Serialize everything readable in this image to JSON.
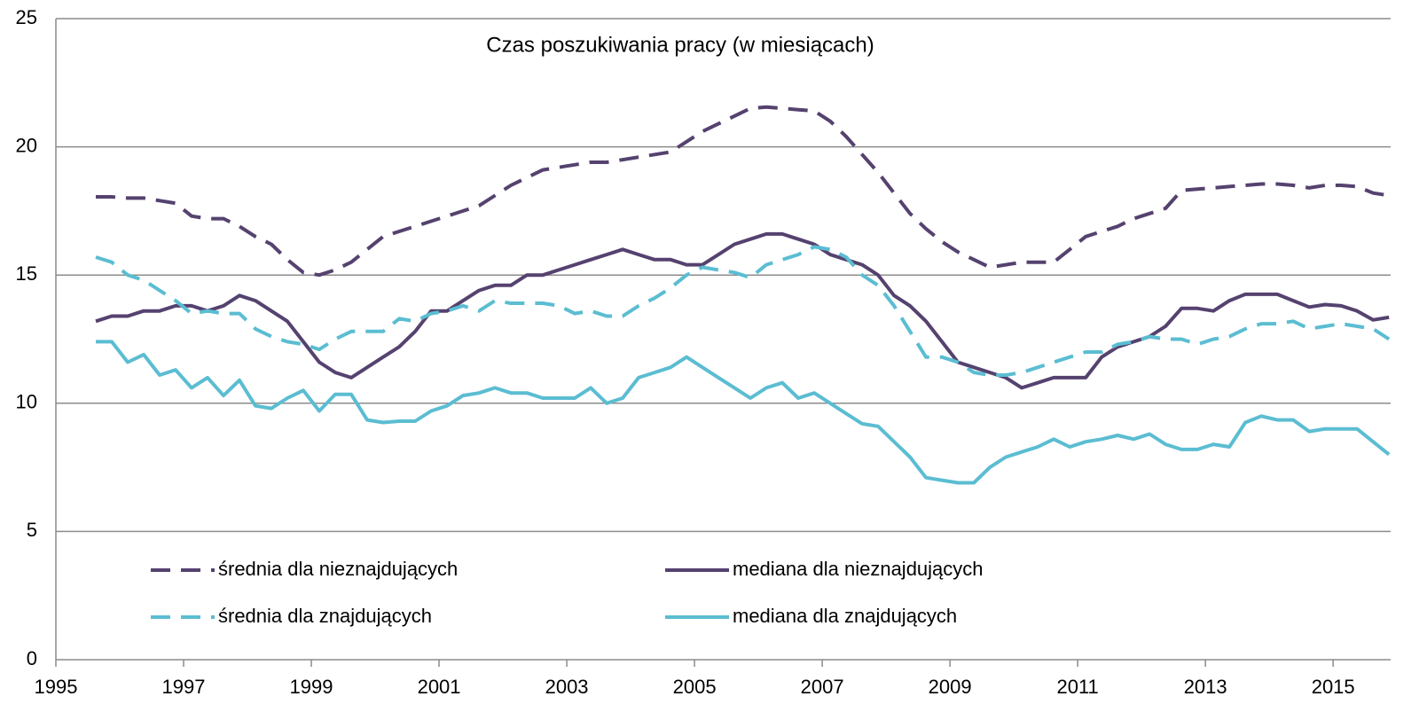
{
  "chart_data": {
    "type": "line",
    "title": "Czas poszukiwania pracy (w miesiącach)",
    "x": [
      1995.625,
      1995.875,
      1996.125,
      1996.375,
      1996.625,
      1996.875,
      1997.125,
      1997.375,
      1997.625,
      1997.875,
      1998.125,
      1998.375,
      1998.625,
      1998.875,
      1999.125,
      1999.375,
      1999.625,
      1999.875,
      2000.125,
      2000.375,
      2000.625,
      2000.875,
      2001.125,
      2001.375,
      2001.625,
      2001.875,
      2002.125,
      2002.375,
      2002.625,
      2002.875,
      2003.125,
      2003.375,
      2003.625,
      2003.875,
      2004.125,
      2004.375,
      2004.625,
      2004.875,
      2005.125,
      2005.375,
      2005.625,
      2005.875,
      2006.125,
      2006.375,
      2006.625,
      2006.875,
      2007.125,
      2007.375,
      2007.625,
      2007.875,
      2008.125,
      2008.375,
      2008.625,
      2008.875,
      2009.125,
      2009.375,
      2009.625,
      2009.875,
      2010.125,
      2010.375,
      2010.625,
      2010.875,
      2011.125,
      2011.375,
      2011.625,
      2011.875,
      2012.125,
      2012.375,
      2012.625,
      2012.875,
      2013.125,
      2013.375,
      2013.625,
      2013.875,
      2014.125,
      2014.375,
      2014.625,
      2014.875,
      2015.125,
      2015.375,
      2015.625,
      2015.875
    ],
    "series": [
      {
        "name": "średnia dla nieznajdujących",
        "color": "#55426f",
        "dashed": true,
        "values": [
          18.05,
          18.05,
          18.0,
          18.0,
          17.9,
          17.8,
          17.3,
          17.2,
          17.2,
          16.9,
          16.5,
          16.2,
          15.6,
          15.1,
          15.0,
          15.2,
          15.5,
          16.0,
          16.5,
          16.7,
          16.9,
          17.1,
          17.3,
          17.5,
          17.7,
          18.1,
          18.5,
          18.8,
          19.1,
          19.2,
          19.3,
          19.4,
          19.4,
          19.5,
          19.6,
          19.7,
          19.8,
          20.2,
          20.6,
          20.9,
          21.2,
          21.5,
          21.55,
          21.5,
          21.45,
          21.4,
          21.0,
          20.4,
          19.7,
          19.0,
          18.2,
          17.4,
          16.8,
          16.3,
          15.9,
          15.6,
          15.3,
          15.4,
          15.5,
          15.5,
          15.5,
          16.0,
          16.5,
          16.7,
          16.9,
          17.2,
          17.4,
          17.6,
          18.3,
          18.35,
          18.4,
          18.45,
          18.5,
          18.55,
          18.55,
          18.5,
          18.4,
          18.5,
          18.5,
          18.45,
          18.2,
          18.1
        ]
      },
      {
        "name": "mediana dla nieznajdujących",
        "color": "#55426f",
        "dashed": false,
        "values": [
          13.2,
          13.4,
          13.4,
          13.6,
          13.6,
          13.8,
          13.8,
          13.6,
          13.8,
          14.2,
          14.0,
          13.6,
          13.2,
          12.4,
          11.6,
          11.2,
          11.0,
          11.4,
          11.8,
          12.2,
          12.8,
          13.6,
          13.6,
          14.0,
          14.4,
          14.6,
          14.6,
          15.0,
          15.0,
          15.2,
          15.4,
          15.6,
          15.8,
          16.0,
          15.8,
          15.6,
          15.6,
          15.4,
          15.4,
          15.8,
          16.2,
          16.4,
          16.6,
          16.6,
          16.4,
          16.2,
          15.8,
          15.6,
          15.4,
          15.0,
          14.2,
          13.8,
          13.2,
          12.4,
          11.6,
          11.4,
          11.2,
          11.0,
          10.6,
          10.8,
          11.0,
          11.0,
          11.0,
          11.8,
          12.2,
          12.4,
          12.6,
          13.0,
          13.7,
          13.7,
          13.6,
          14.0,
          14.25,
          14.25,
          14.25,
          14.0,
          13.75,
          13.85,
          13.8,
          13.6,
          13.25,
          13.35
        ]
      },
      {
        "name": "średnia dla znajdujących",
        "color": "#5bbdd2",
        "dashed": true,
        "values": [
          15.7,
          15.5,
          15.0,
          14.8,
          14.4,
          14.0,
          13.5,
          13.6,
          13.5,
          13.5,
          12.9,
          12.6,
          12.4,
          12.3,
          12.1,
          12.5,
          12.8,
          12.8,
          12.8,
          13.3,
          13.2,
          13.5,
          13.6,
          13.8,
          13.6,
          14.0,
          13.9,
          13.9,
          13.9,
          13.8,
          13.5,
          13.6,
          13.4,
          13.4,
          13.8,
          14.1,
          14.5,
          15.0,
          15.3,
          15.2,
          15.1,
          14.9,
          15.4,
          15.6,
          15.8,
          16.1,
          16.0,
          15.7,
          15.0,
          14.6,
          13.8,
          12.8,
          11.8,
          11.8,
          11.6,
          11.2,
          11.1,
          11.1,
          11.2,
          11.4,
          11.6,
          11.8,
          12.0,
          12.0,
          12.3,
          12.4,
          12.6,
          12.5,
          12.5,
          12.3,
          12.5,
          12.6,
          12.9,
          13.1,
          13.1,
          13.2,
          12.9,
          13.0,
          13.1,
          13.0,
          12.9,
          12.5
        ]
      },
      {
        "name": "mediana dla znajdujących",
        "color": "#5bbdd2",
        "dashed": false,
        "values": [
          12.4,
          12.4,
          11.6,
          11.9,
          11.1,
          11.3,
          10.6,
          11.0,
          10.3,
          10.9,
          9.9,
          9.8,
          10.2,
          10.5,
          9.7,
          10.35,
          10.35,
          9.35,
          9.25,
          9.3,
          9.3,
          9.7,
          9.9,
          10.3,
          10.4,
          10.6,
          10.4,
          10.4,
          10.2,
          10.2,
          10.2,
          10.6,
          10.0,
          10.2,
          11.0,
          11.2,
          11.4,
          11.8,
          11.4,
          11.0,
          10.6,
          10.2,
          10.6,
          10.8,
          10.2,
          10.4,
          10.0,
          9.6,
          9.2,
          9.1,
          8.5,
          7.9,
          7.1,
          7.0,
          6.9,
          6.9,
          7.5,
          7.9,
          8.1,
          8.3,
          8.6,
          8.3,
          8.5,
          8.6,
          8.75,
          8.6,
          8.8,
          8.4,
          8.2,
          8.2,
          8.4,
          8.3,
          9.25,
          9.5,
          9.35,
          9.35,
          8.9,
          9.0,
          9.0,
          9.0,
          8.5,
          8.0
        ]
      }
    ],
    "xlim": [
      1995,
      2015.9
    ],
    "xticks": [
      1995,
      1997,
      1999,
      2001,
      2003,
      2005,
      2007,
      2009,
      2011,
      2013,
      2015
    ],
    "ylim": [
      0,
      25
    ],
    "yticks": [
      0,
      5,
      10,
      15,
      20,
      25
    ],
    "grid": true
  }
}
